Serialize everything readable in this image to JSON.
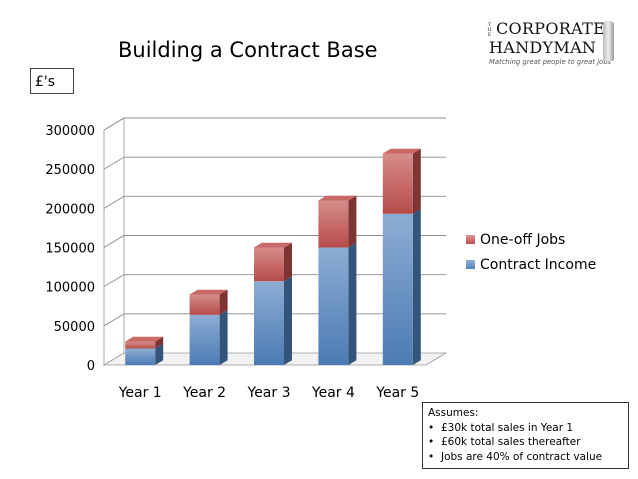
{
  "units_label": "£'s",
  "logo": {
    "the": "THE",
    "line1": "CORPORATE",
    "line2": "HANDYMAN",
    "tagline": "Matching great people to great jobs"
  },
  "assumptions": {
    "heading": "Assumes:",
    "items": [
      "£30k total sales in Year 1",
      "£60k total sales thereafter",
      "Jobs are 40% of contract value"
    ]
  },
  "chart_data": {
    "type": "bar",
    "stacked": true,
    "three_d": true,
    "title": "Building a Contract Base",
    "categories": [
      "Year 1",
      "Year 2",
      "Year 3",
      "Year 4",
      "Year 5"
    ],
    "series": [
      {
        "name": "Contract Income",
        "values": [
          21000,
          64000,
          107000,
          150000,
          193000
        ],
        "color": "#4f81bd"
      },
      {
        "name": "One-off Jobs",
        "values": [
          9000,
          26000,
          43000,
          60000,
          77000
        ],
        "color": "#c0504d"
      }
    ],
    "ylim": [
      0,
      300000
    ],
    "yticks": [
      0,
      50000,
      100000,
      150000,
      200000,
      250000,
      300000
    ],
    "grid": true,
    "legend_position": "right"
  }
}
